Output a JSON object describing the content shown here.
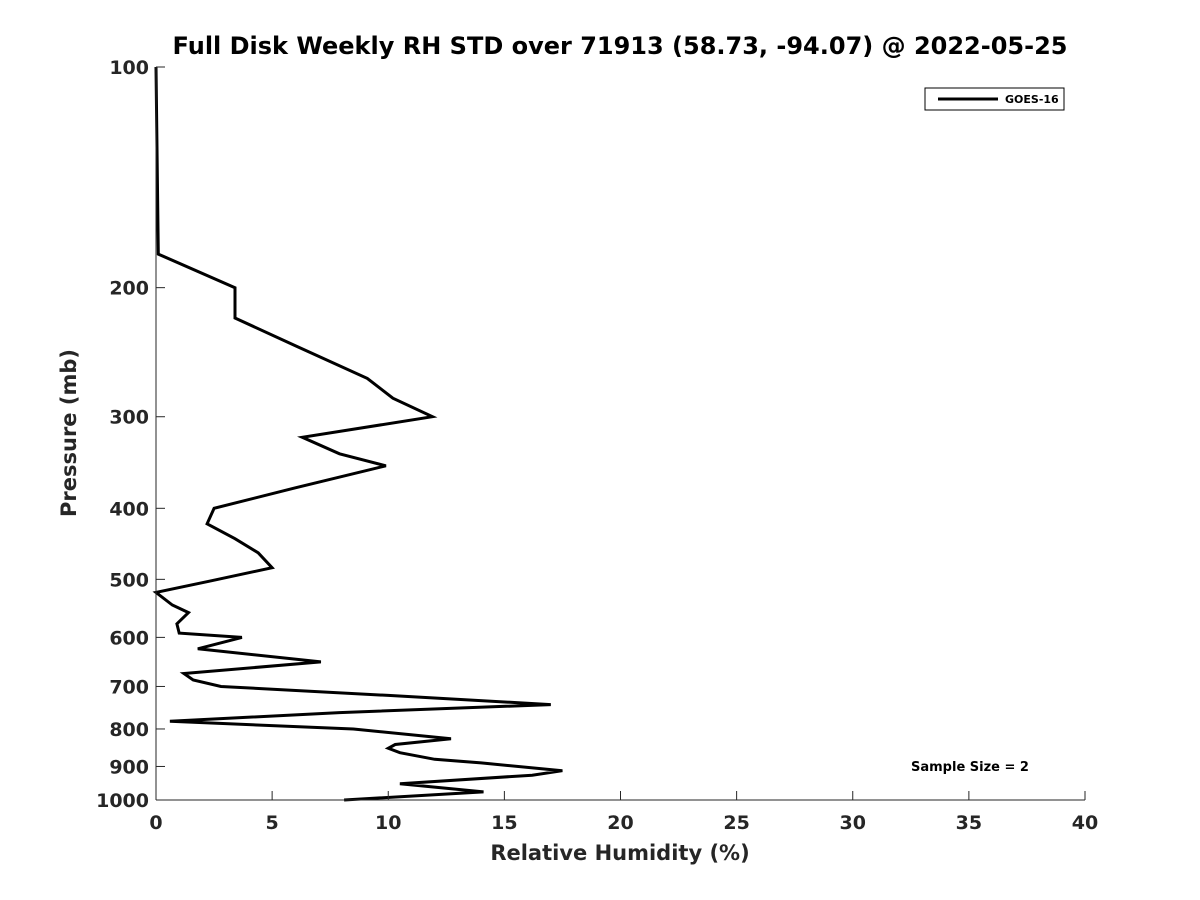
{
  "chart_data": {
    "type": "line",
    "title": "Full Disk Weekly RH STD over 71913 (58.73, -94.07) @ 2022-05-25",
    "xlabel": "Relative Humidity (%)",
    "ylabel": "Pressure (mb)",
    "xlim": [
      0,
      40
    ],
    "ylim": [
      100,
      1000
    ],
    "y_scale": "log",
    "y_reversed": true,
    "x_ticks": [
      0,
      5,
      10,
      15,
      20,
      25,
      30,
      35,
      40
    ],
    "y_ticks": [
      100,
      200,
      300,
      400,
      500,
      600,
      700,
      800,
      900,
      1000
    ],
    "grid": false,
    "legend_position": "top-right",
    "series": [
      {
        "name": "GOES-16",
        "color": "#000000",
        "points": [
          [
            8.1,
            1000
          ],
          [
            14.1,
            975
          ],
          [
            10.5,
            950
          ],
          [
            16.2,
            925
          ],
          [
            17.5,
            912
          ],
          [
            14.0,
            890
          ],
          [
            12.0,
            880
          ],
          [
            10.5,
            862
          ],
          [
            10.0,
            850
          ],
          [
            10.3,
            840
          ],
          [
            12.7,
            825
          ],
          [
            8.5,
            800
          ],
          [
            0.6,
            781
          ],
          [
            7.9,
            760
          ],
          [
            17.0,
            741
          ],
          [
            10.0,
            720
          ],
          [
            2.8,
            700
          ],
          [
            1.6,
            686
          ],
          [
            1.2,
            672
          ],
          [
            7.1,
            648
          ],
          [
            1.8,
            622
          ],
          [
            3.7,
            600
          ],
          [
            1.0,
            592
          ],
          [
            0.9,
            575
          ],
          [
            1.4,
            555
          ],
          [
            0.7,
            542
          ],
          [
            0.0,
            521
          ],
          [
            2.3,
            503
          ],
          [
            5.0,
            482
          ],
          [
            4.4,
            460
          ],
          [
            3.4,
            440
          ],
          [
            2.2,
            420
          ],
          [
            2.5,
            400
          ],
          [
            6.0,
            375
          ],
          [
            9.9,
            350
          ],
          [
            7.9,
            337
          ],
          [
            6.3,
            320
          ],
          [
            11.9,
            300
          ],
          [
            10.2,
            283
          ],
          [
            9.1,
            266
          ],
          [
            6.0,
            240
          ],
          [
            3.4,
            220
          ],
          [
            3.4,
            200
          ],
          [
            0.1,
            180
          ],
          [
            0.0,
            100
          ]
        ]
      }
    ],
    "annotation": "Sample Size = 2"
  }
}
